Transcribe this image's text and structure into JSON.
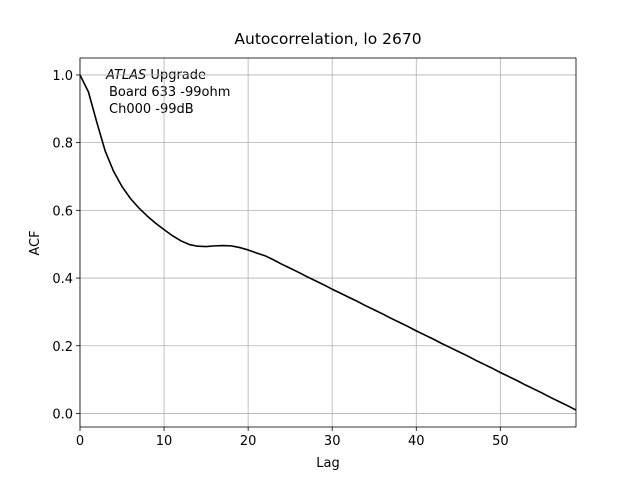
{
  "chart_data": {
    "type": "line",
    "title": "Autocorrelation, lo 2670",
    "x_label": "Lag",
    "y_label": "ACF",
    "annotation": {
      "italic": "ATLAS",
      "lines": [
        "Upgrade",
        "Board 633 -99ohm",
        "Ch000 -99dB"
      ]
    },
    "x": [
      0,
      1,
      2,
      3,
      4,
      5,
      6,
      7,
      8,
      9,
      10,
      11,
      12,
      13,
      14,
      15,
      16,
      17,
      18,
      19,
      20,
      21,
      22,
      23,
      24,
      25,
      26,
      27,
      28,
      29,
      30,
      31,
      32,
      33,
      34,
      35,
      36,
      37,
      38,
      39,
      40,
      41,
      42,
      43,
      44,
      45,
      46,
      47,
      48,
      49,
      50,
      51,
      52,
      53,
      54,
      55,
      56,
      57,
      58,
      59
    ],
    "series": [
      {
        "name": "ACF",
        "color": "#000000",
        "values": [
          1.0,
          0.95,
          0.86,
          0.775,
          0.715,
          0.67,
          0.635,
          0.607,
          0.583,
          0.562,
          0.543,
          0.525,
          0.51,
          0.499,
          0.494,
          0.493,
          0.495,
          0.496,
          0.495,
          0.49,
          0.483,
          0.474,
          0.466,
          0.454,
          0.441,
          0.429,
          0.417,
          0.404,
          0.392,
          0.38,
          0.367,
          0.355,
          0.343,
          0.331,
          0.318,
          0.306,
          0.294,
          0.281,
          0.269,
          0.257,
          0.244,
          0.232,
          0.22,
          0.207,
          0.195,
          0.183,
          0.171,
          0.158,
          0.146,
          0.134,
          0.121,
          0.109,
          0.097,
          0.084,
          0.072,
          0.06,
          0.047,
          0.035,
          0.023,
          0.01
        ]
      }
    ],
    "xlim": [
      0,
      59
    ],
    "ylim": [
      -0.04,
      1.05
    ],
    "xticks": [
      0,
      10,
      20,
      30,
      40,
      50
    ],
    "yticks": [
      {
        "value": 0,
        "label": "0.0"
      },
      {
        "value": 0.2,
        "label": "0.2"
      },
      {
        "value": 0.4,
        "label": "0.4"
      },
      {
        "value": 0.6,
        "label": "0.6"
      },
      {
        "value": 0.8,
        "label": "0.8"
      },
      {
        "value": 1,
        "label": "1.0"
      }
    ],
    "grid": true
  }
}
